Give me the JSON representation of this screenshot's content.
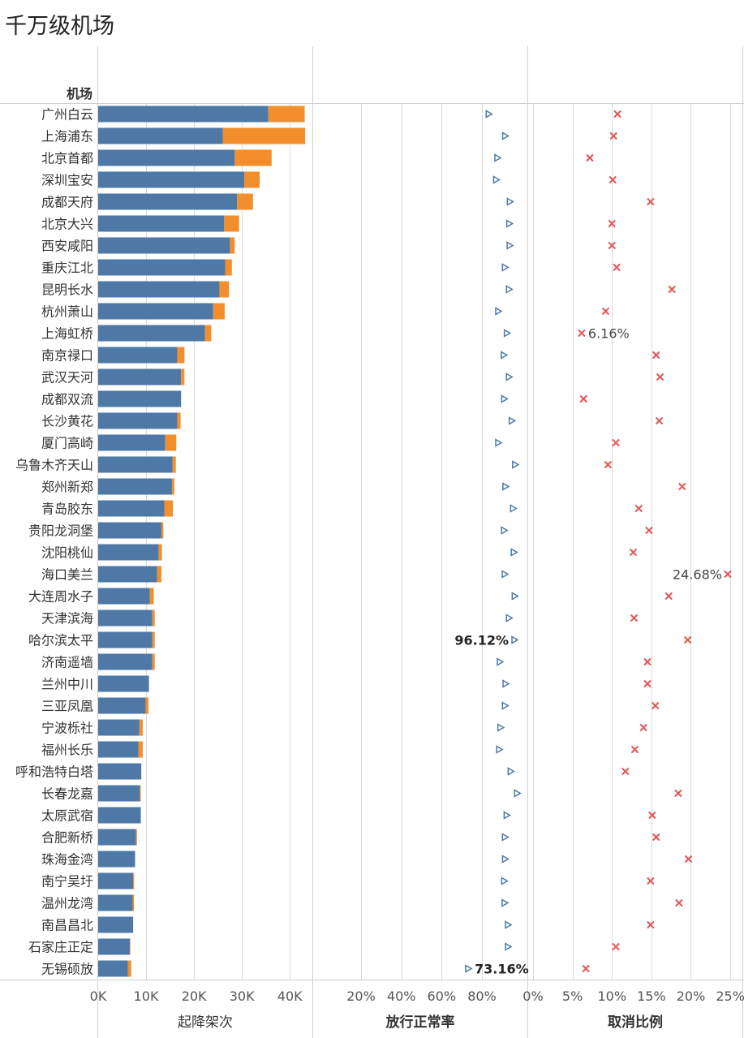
{
  "title": "千万级机场",
  "chart_data": {
    "type": "bar",
    "row_header": "机场",
    "series_colors": {
      "blue": "#4e79a7",
      "orange": "#f28e2b",
      "cancel": "#e15759",
      "grid": "#d9d9d9"
    },
    "panels": [
      {
        "id": "flights",
        "xlabel": "起降架次",
        "xlim": [
          0,
          45000
        ],
        "ticks": [
          {
            "v": 0,
            "t": "0K"
          },
          {
            "v": 10000,
            "t": "10K"
          },
          {
            "v": 20000,
            "t": "20K"
          },
          {
            "v": 30000,
            "t": "30K"
          },
          {
            "v": 40000,
            "t": "40K"
          }
        ]
      },
      {
        "id": "ontime",
        "xlabel": "放行正常率",
        "xlim": [
          0.1,
          1.1
        ],
        "ticks": [
          {
            "v": 0.2,
            "t": "20%"
          },
          {
            "v": 0.4,
            "t": "40%"
          },
          {
            "v": 0.6,
            "t": "60%"
          },
          {
            "v": 0.8,
            "t": "80%"
          }
        ]
      },
      {
        "id": "cancel",
        "xlabel": "取消比例",
        "xlim": [
          0,
          0.26
        ],
        "ticks": [
          {
            "v": 0,
            "t": "0%"
          },
          {
            "v": 0.05,
            "t": "5%"
          },
          {
            "v": 0.1,
            "t": "10%"
          },
          {
            "v": 0.15,
            "t": "15%"
          },
          {
            "v": 0.2,
            "t": "20%"
          },
          {
            "v": 0.25,
            "t": "25%"
          }
        ]
      }
    ],
    "categories": [
      "广州白云",
      "上海浦东",
      "北京首都",
      "深圳宝安",
      "成都天府",
      "北京大兴",
      "西安咸阳",
      "重庆江北",
      "昆明长水",
      "杭州萧山",
      "上海虹桥",
      "南京禄口",
      "武汉天河",
      "成都双流",
      "长沙黄花",
      "厦门高崎",
      "乌鲁木齐天山",
      "郑州新郑",
      "青岛胶东",
      "贵阳龙洞堡",
      "沈阳桃仙",
      "海口美兰",
      "大连周水子",
      "天津滨海",
      "哈尔滨太平",
      "济南遥墙",
      "兰州中川",
      "三亚凤凰",
      "宁波栎社",
      "福州长乐",
      "呼和浩特白塔",
      "长春龙嘉",
      "太原武宿",
      "合肥新桥",
      "珠海金湾",
      "南宁吴圩",
      "温州龙湾",
      "南昌昌北",
      "石家庄正定",
      "无锡硕放"
    ],
    "flights_blue": [
      35500,
      26000,
      28500,
      30500,
      29000,
      26300,
      27500,
      26500,
      25300,
      24000,
      22300,
      16500,
      17300,
      17300,
      16500,
      14000,
      15500,
      15400,
      13800,
      13200,
      12600,
      12300,
      10800,
      11300,
      11300,
      11300,
      10600,
      9900,
      8600,
      8400,
      9000,
      8700,
      8900,
      7900,
      7700,
      7300,
      7200,
      7300,
      6600,
      6200
    ],
    "flights_orange": [
      7600,
      17200,
      7700,
      3200,
      3300,
      3100,
      1000,
      1400,
      2000,
      2400,
      1300,
      1500,
      700,
      0,
      700,
      2300,
      700,
      500,
      1800,
      400,
      700,
      900,
      800,
      500,
      500,
      500,
      0,
      600,
      700,
      900,
      0,
      200,
      0,
      200,
      0,
      200,
      300,
      0,
      100,
      700
    ],
    "ontime_rate": [
      0.8335,
      0.915,
      0.8765,
      0.8705,
      0.9385,
      0.9355,
      0.9375,
      0.914,
      0.934,
      0.8805,
      0.9235,
      0.908,
      0.9335,
      0.91,
      0.9475,
      0.8805,
      0.9645,
      0.9165,
      0.9545,
      0.9095,
      0.958,
      0.913,
      0.9625,
      0.934,
      0.9612,
      0.8885,
      0.917,
      0.914,
      0.8915,
      0.8855,
      0.9425,
      0.9745,
      0.9225,
      0.914,
      0.9145,
      0.91,
      0.9125,
      0.929,
      0.929,
      0.7316
    ],
    "cancel_rate": [
      0.107,
      0.102,
      0.072,
      0.101,
      0.149,
      0.1,
      0.1,
      0.106,
      0.176,
      0.092,
      0.0616,
      0.156,
      0.161,
      0.064,
      0.16,
      0.105,
      0.095,
      0.189,
      0.134,
      0.147,
      0.127,
      0.2468,
      0.172,
      0.128,
      0.196,
      0.145,
      0.145,
      0.155,
      0.14,
      0.129,
      0.117,
      0.184,
      0.151,
      0.156,
      0.197,
      0.149,
      0.185,
      0.149,
      0.105,
      0.067
    ],
    "annotations": [
      {
        "panel": "cancel",
        "row": 10,
        "text": "6.16%",
        "side": "right",
        "bold": false
      },
      {
        "panel": "cancel",
        "row": 21,
        "text": "24.68%",
        "side": "left",
        "bold": false
      },
      {
        "panel": "ontime",
        "row": 24,
        "text": "96.12%",
        "side": "left",
        "bold": true
      },
      {
        "panel": "ontime",
        "row": 39,
        "text": "73.16%",
        "side": "right",
        "bold": true
      }
    ]
  }
}
